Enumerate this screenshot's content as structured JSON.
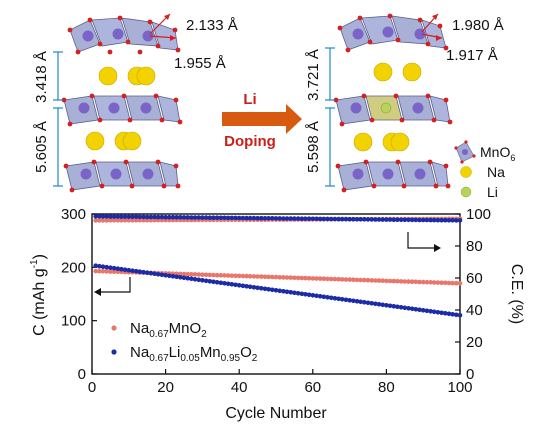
{
  "structure": {
    "left": {
      "bond_long": "2.133 Å",
      "bond_short": "1.955 Å",
      "interlayer": "3.418 Å",
      "layer": "5.605 Å"
    },
    "right": {
      "bond_long": "1.980 Å",
      "bond_short": "1.917 Å",
      "interlayer": "3.721 Å",
      "layer": "5.598 Å"
    },
    "arrow": {
      "line1": "Li",
      "line2": "Doping"
    },
    "legend": {
      "mno6_prefix": "MnO",
      "mno6_sub": "6",
      "na": "Na",
      "li": "Li"
    },
    "colors": {
      "octahedron": "#8c95c8",
      "mn": "#7b64c8",
      "na": "#f2d300",
      "li": "#b7d35a",
      "o": "#d42020",
      "arrow": "#d85a10",
      "arrow_text": "#c8201a",
      "dimension": "#1e88c8",
      "li_doped_octahedron": "#c9c46a"
    }
  },
  "chart_data": {
    "type": "scatter",
    "xlabel": "Cycle Number",
    "ylabel_left": "C (mAh g",
    "ylabel_left_sup": "-1",
    "ylabel_left_end": ")",
    "ylabel_right": "C.E. (%)",
    "xlim": [
      0,
      100
    ],
    "ylim_left": [
      0,
      300
    ],
    "ylim_right": [
      0,
      100
    ],
    "xticks": [
      "0",
      "20",
      "40",
      "60",
      "80",
      "100"
    ],
    "yticks_left": [
      "0",
      "100",
      "200",
      "300"
    ],
    "yticks_right": [
      "0",
      "20",
      "40",
      "60",
      "80",
      "100"
    ],
    "legend": [
      {
        "main": "Na",
        "sub1": "0.67",
        "mid": "MnO",
        "sub2": "2",
        "tail": "",
        "sub3": "",
        "end": ""
      },
      {
        "main": "Na",
        "sub1": "0.67",
        "mid": "Li",
        "sub2": "0.05",
        "tail": "Mn",
        "sub3": "0.95",
        "end": "O",
        "sub4": "2"
      }
    ],
    "series": [
      {
        "name": "Na0.67MnO2 capacity",
        "axis": "left",
        "color": "#e8766a",
        "start_cycle": 1,
        "end_cycle": 100,
        "start_value": 193,
        "end_value": 170
      },
      {
        "name": "Na0.67Li0.05Mn0.95O2 capacity",
        "axis": "left",
        "color": "#1b2ca6",
        "start_cycle": 1,
        "end_cycle": 100,
        "start_value": 203,
        "end_value": 110
      },
      {
        "name": "Na0.67MnO2 C.E.",
        "axis": "right",
        "color": "#e8766a",
        "start_cycle": 1,
        "end_cycle": 100,
        "start_value": 96,
        "end_value": 97
      },
      {
        "name": "Na0.67Li0.05Mn0.95O2 C.E.",
        "axis": "right",
        "color": "#1b2ca6",
        "start_cycle": 1,
        "end_cycle": 100,
        "start_value": 98.5,
        "end_value": 96
      }
    ]
  }
}
